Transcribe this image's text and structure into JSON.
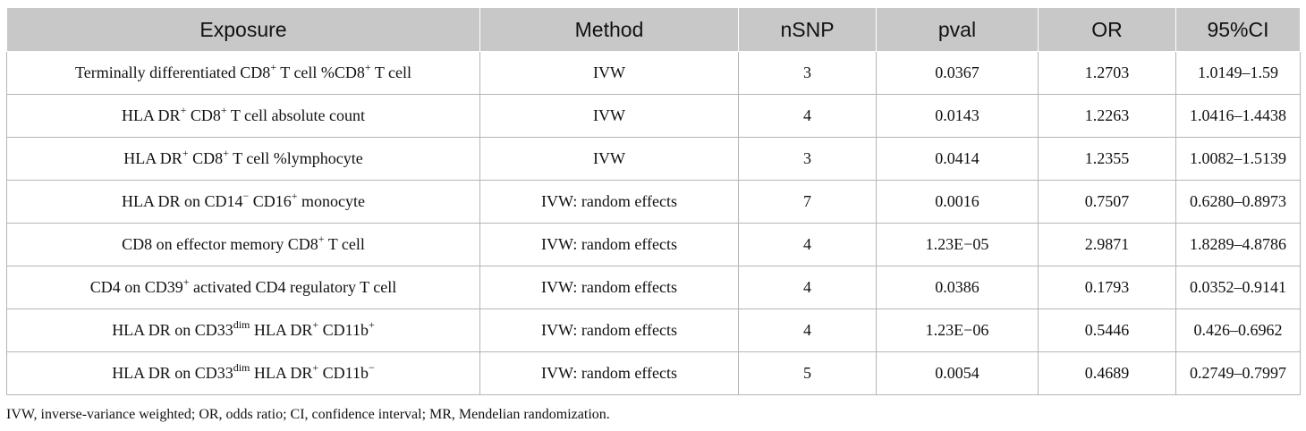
{
  "table": {
    "headers": [
      "Exposure",
      "Method",
      "nSNP",
      "pval",
      "OR",
      "95%CI"
    ],
    "rows": [
      {
        "exposure": [
          [
            "Terminally differentiated CD8",
            ""
          ],
          [
            "+",
            "sup"
          ],
          [
            " T cell %CD8",
            ""
          ],
          [
            "+",
            "sup"
          ],
          [
            " T cell",
            ""
          ]
        ],
        "method": "IVW",
        "nsnp": "3",
        "pval": "0.0367",
        "or": "1.2703",
        "ci": "1.0149–1.59"
      },
      {
        "exposure": [
          [
            "HLA DR",
            ""
          ],
          [
            "+",
            "sup"
          ],
          [
            " CD8",
            ""
          ],
          [
            "+",
            "sup"
          ],
          [
            " T cell absolute count",
            ""
          ]
        ],
        "method": "IVW",
        "nsnp": "4",
        "pval": "0.0143",
        "or": "1.2263",
        "ci": "1.0416–1.4438"
      },
      {
        "exposure": [
          [
            "HLA DR",
            ""
          ],
          [
            "+",
            "sup"
          ],
          [
            " CD8",
            ""
          ],
          [
            "+",
            "sup"
          ],
          [
            " T cell %lymphocyte",
            ""
          ]
        ],
        "method": "IVW",
        "nsnp": "3",
        "pval": "0.0414",
        "or": "1.2355",
        "ci": "1.0082–1.5139"
      },
      {
        "exposure": [
          [
            "HLA DR on CD14",
            ""
          ],
          [
            "−",
            "sup"
          ],
          [
            " CD16",
            ""
          ],
          [
            "+",
            "sup"
          ],
          [
            " monocyte",
            ""
          ]
        ],
        "method": "IVW: random effects",
        "nsnp": "7",
        "pval": "0.0016",
        "or": "0.7507",
        "ci": "0.6280–0.8973"
      },
      {
        "exposure": [
          [
            "CD8 on effector memory CD8",
            ""
          ],
          [
            "+",
            "sup"
          ],
          [
            " T cell",
            ""
          ]
        ],
        "method": "IVW: random effects",
        "nsnp": "4",
        "pval": "1.23E−05",
        "or": "2.9871",
        "ci": "1.8289–4.8786"
      },
      {
        "exposure": [
          [
            "CD4 on CD39",
            ""
          ],
          [
            "+",
            "sup"
          ],
          [
            " activated CD4 regulatory T cell",
            ""
          ]
        ],
        "method": "IVW: random effects",
        "nsnp": "4",
        "pval": "0.0386",
        "or": "0.1793",
        "ci": "0.0352–0.9141"
      },
      {
        "exposure": [
          [
            "HLA DR on CD33",
            ""
          ],
          [
            "dim",
            "sup"
          ],
          [
            " HLA DR",
            ""
          ],
          [
            "+",
            "sup"
          ],
          [
            " CD11b",
            ""
          ],
          [
            "+",
            "sup"
          ]
        ],
        "method": "IVW: random effects",
        "nsnp": "4",
        "pval": "1.23E−06",
        "or": "0.5446",
        "ci": "0.426–0.6962"
      },
      {
        "exposure": [
          [
            "HLA DR on CD33",
            ""
          ],
          [
            "dim",
            "sup"
          ],
          [
            " HLA DR",
            ""
          ],
          [
            "+",
            "sup"
          ],
          [
            " CD11b",
            ""
          ],
          [
            "−",
            "sup"
          ]
        ],
        "method": "IVW: random effects",
        "nsnp": "5",
        "pval": "0.0054",
        "or": "0.4689",
        "ci": "0.2749–0.7997"
      }
    ]
  },
  "footnote": "IVW, inverse-variance weighted; OR, odds ratio; CI, confidence interval; MR, Mendelian randomization."
}
